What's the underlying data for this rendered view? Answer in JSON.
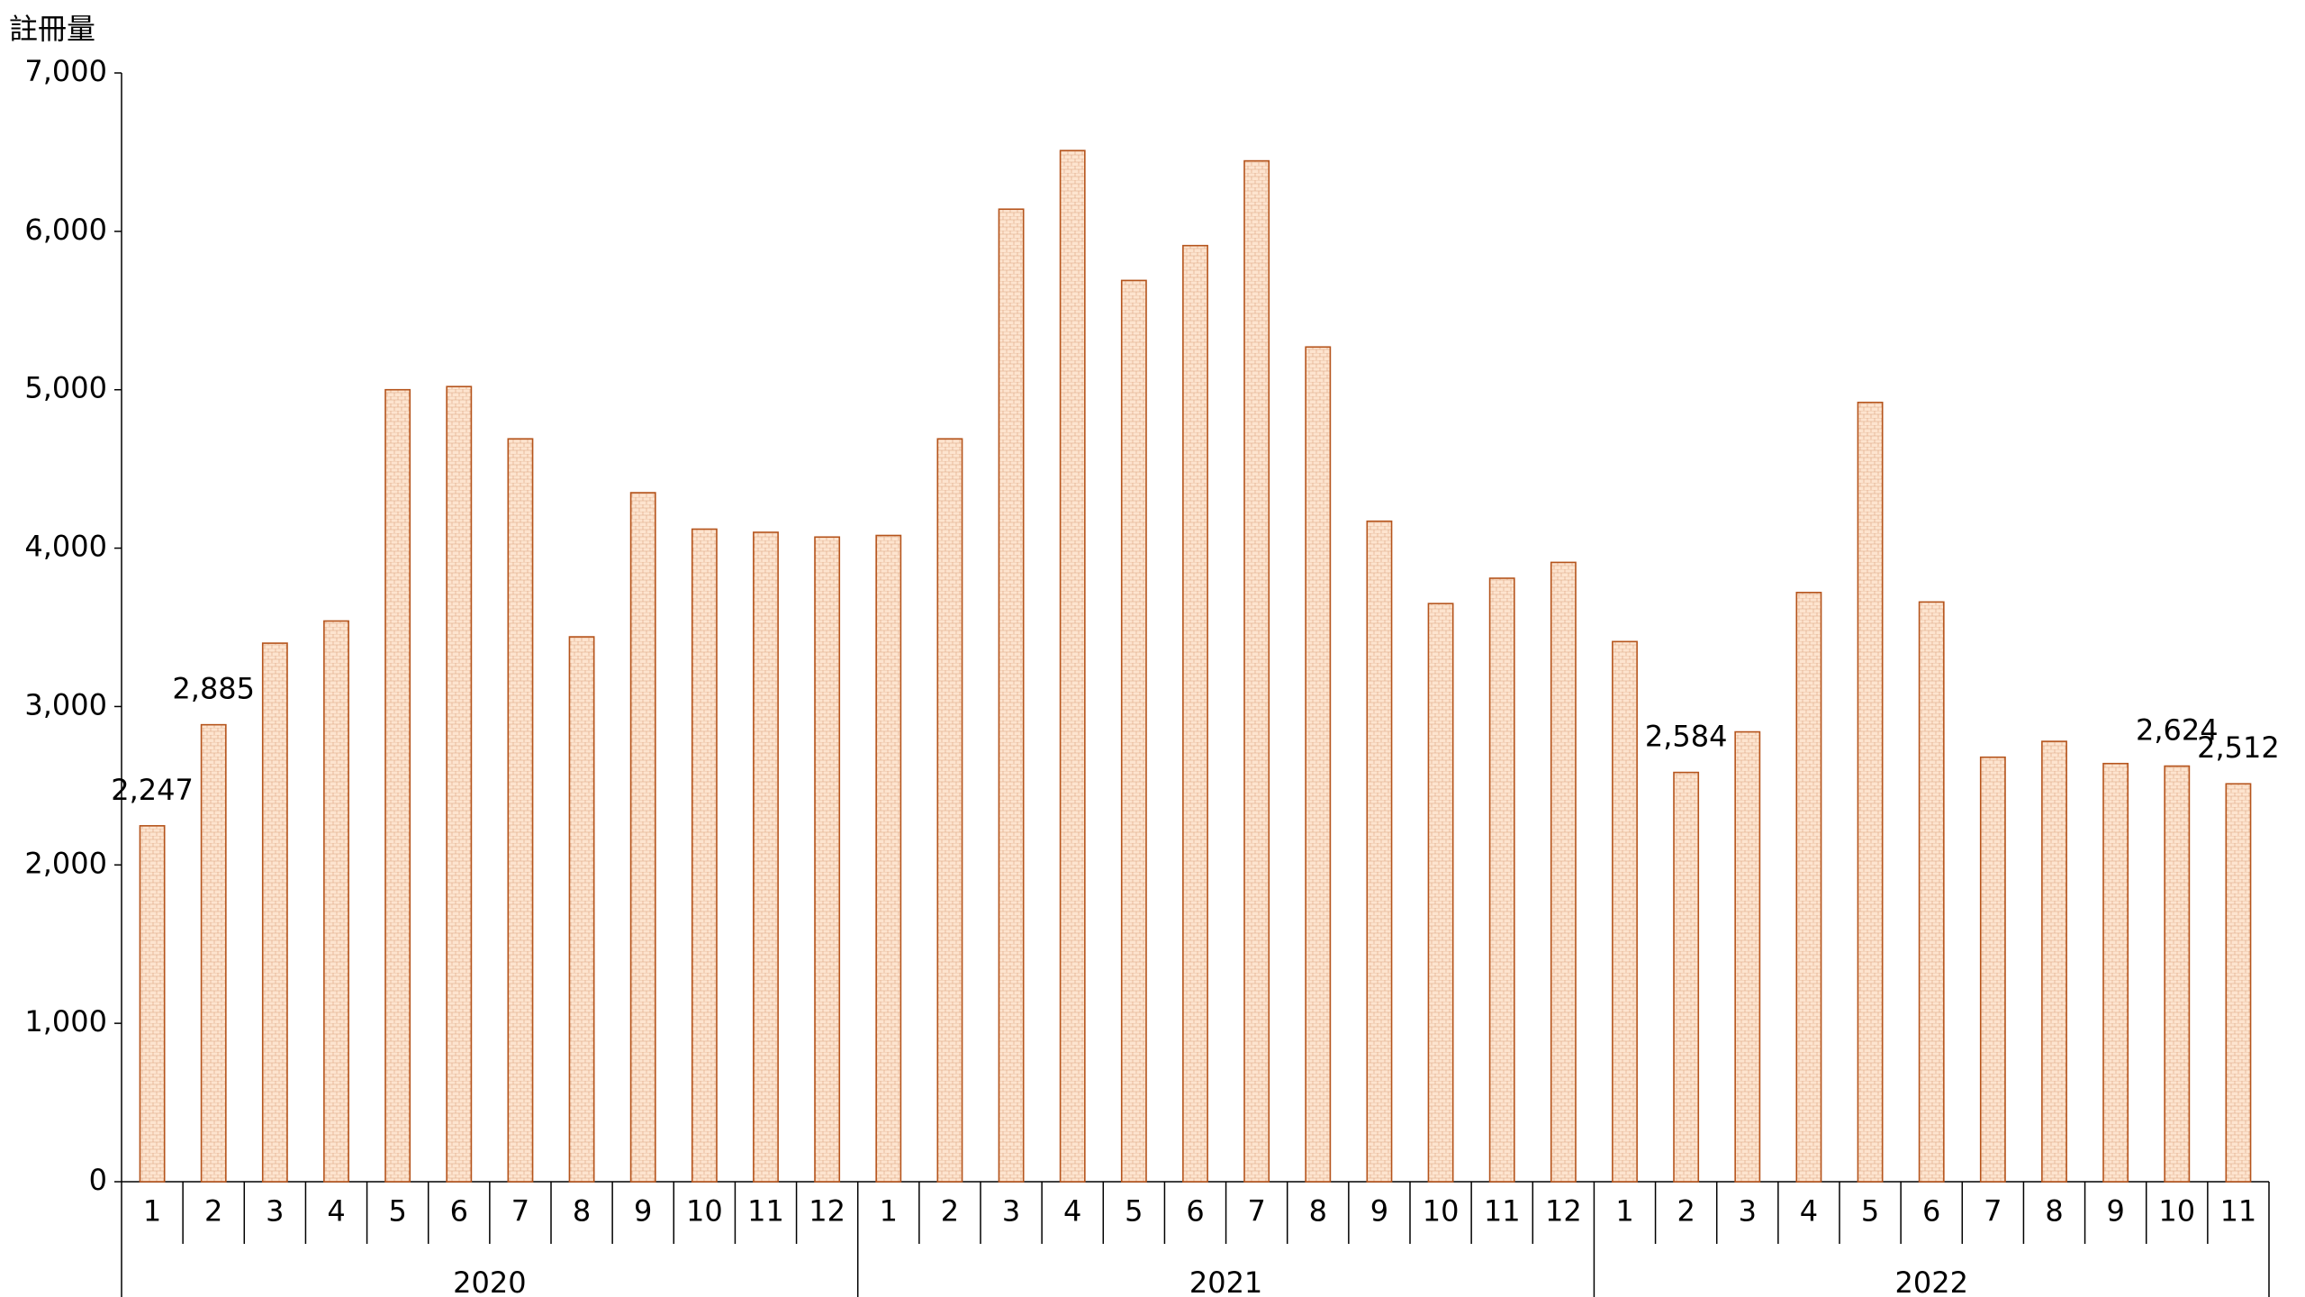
{
  "chart_data": {
    "type": "bar",
    "y_axis_title": "註冊量",
    "color": "#b5541c",
    "fill": "#fde4cf",
    "ylim": [
      0,
      7000
    ],
    "yticks": [
      0,
      {
        "value": 1000,
        "label": "1,000"
      },
      {
        "value": 2000,
        "label": "2,000"
      },
      {
        "value": 3000,
        "label": "3,000"
      },
      {
        "value": 4000,
        "label": "4,000"
      },
      {
        "value": 5000,
        "label": "5,000"
      },
      {
        "value": 6000,
        "label": "6,000"
      },
      {
        "value": 7000,
        "label": "7,000"
      }
    ],
    "groups": [
      {
        "name": "2020",
        "categories": [
          "1",
          "2",
          "3",
          "4",
          "5",
          "6",
          "7",
          "8",
          "9",
          "10",
          "11",
          "12"
        ],
        "values": [
          2247,
          2885,
          3400,
          3540,
          5000,
          5020,
          4690,
          3440,
          4350,
          4120,
          4100,
          4070
        ],
        "value_labels": [
          "2,247",
          "2,885",
          null,
          null,
          null,
          null,
          null,
          null,
          null,
          null,
          null,
          null
        ]
      },
      {
        "name": "2021",
        "categories": [
          "1",
          "2",
          "3",
          "4",
          "5",
          "6",
          "7",
          "8",
          "9",
          "10",
          "11",
          "12"
        ],
        "values": [
          4080,
          4690,
          6140,
          6510,
          5690,
          5910,
          6445,
          5270,
          4170,
          3650,
          3810,
          3910
        ],
        "value_labels": [
          null,
          null,
          null,
          null,
          null,
          null,
          null,
          null,
          null,
          null,
          null,
          null
        ]
      },
      {
        "name": "2022",
        "categories": [
          "1",
          "2",
          "3",
          "4",
          "5",
          "6",
          "7",
          "8",
          "9",
          "10",
          "11"
        ],
        "values": [
          3410,
          2584,
          2840,
          3720,
          4920,
          3660,
          2680,
          2780,
          2640,
          2624,
          2512
        ],
        "value_labels": [
          null,
          "2,584",
          null,
          null,
          null,
          null,
          null,
          null,
          null,
          "2,624",
          "2,512"
        ]
      }
    ]
  }
}
